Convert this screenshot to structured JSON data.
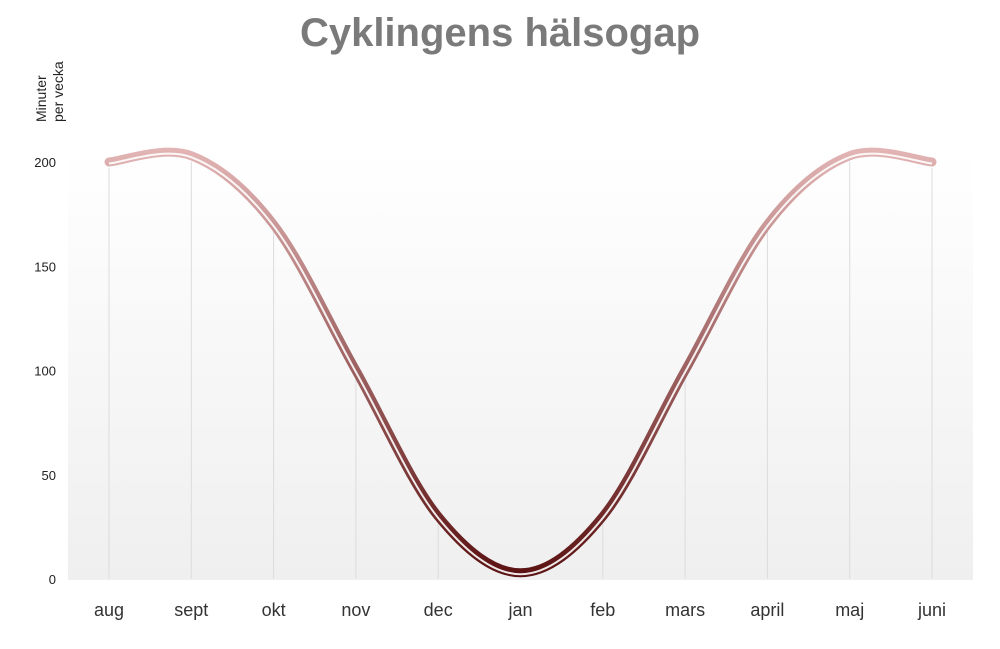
{
  "chart_data": {
    "type": "line",
    "title": "Cyklingens hälsogap",
    "ylabel_lines": [
      "Minuter",
      "per vecka"
    ],
    "xlabel": "",
    "categories": [
      "aug",
      "sept",
      "okt",
      "nov",
      "dec",
      "jan",
      "feb",
      "mars",
      "april",
      "maj",
      "juni"
    ],
    "series": [
      {
        "values": [
          200,
          203,
          170,
          100,
          30,
          3,
          30,
          100,
          170,
          203,
          200
        ]
      }
    ],
    "yticks": [
      0,
      50,
      100,
      150,
      200
    ],
    "ylim": [
      0,
      200
    ],
    "grid": "vertical",
    "legend": "none",
    "smooth": true,
    "colors": {
      "line_top": "#e2b4b4",
      "line_bottom": "#5a1010",
      "title": "#7a7a7a",
      "grid": "#dcdcdc",
      "plot_bg_bottom": "#efefef"
    }
  }
}
